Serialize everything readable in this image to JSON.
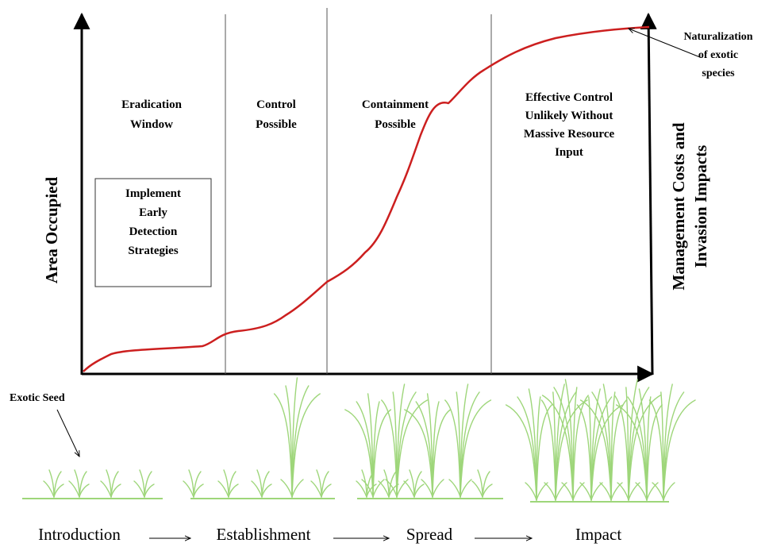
{
  "axes": {
    "y_left_label": "Area Occupied",
    "y_right_label_line1": "Management Costs and",
    "y_right_label_line2": "Invasion Impacts"
  },
  "zones": [
    {
      "lines": [
        "Eradication",
        "Window"
      ]
    },
    {
      "lines": [
        "Control",
        "Possible"
      ]
    },
    {
      "lines": [
        "Containment",
        "Possible"
      ]
    },
    {
      "lines": [
        "Effective Control",
        "Unlikely Without",
        "Massive Resource",
        "Input"
      ]
    }
  ],
  "early_detection_box": {
    "lines": [
      "Implement",
      "Early",
      "Detection",
      "Strategies"
    ]
  },
  "naturalization_label": {
    "lines": [
      "Naturalization",
      "of exotic",
      "species"
    ]
  },
  "exotic_seed_label": "Exotic Seed",
  "stages": [
    "Introduction",
    "Establishment",
    "Spread",
    "Impact"
  ],
  "colors": {
    "curve": "#cc1f1f",
    "plants": "#9ed67a",
    "ground": "#9ed67a",
    "axes": "#000000",
    "dividers": "#555555"
  }
}
